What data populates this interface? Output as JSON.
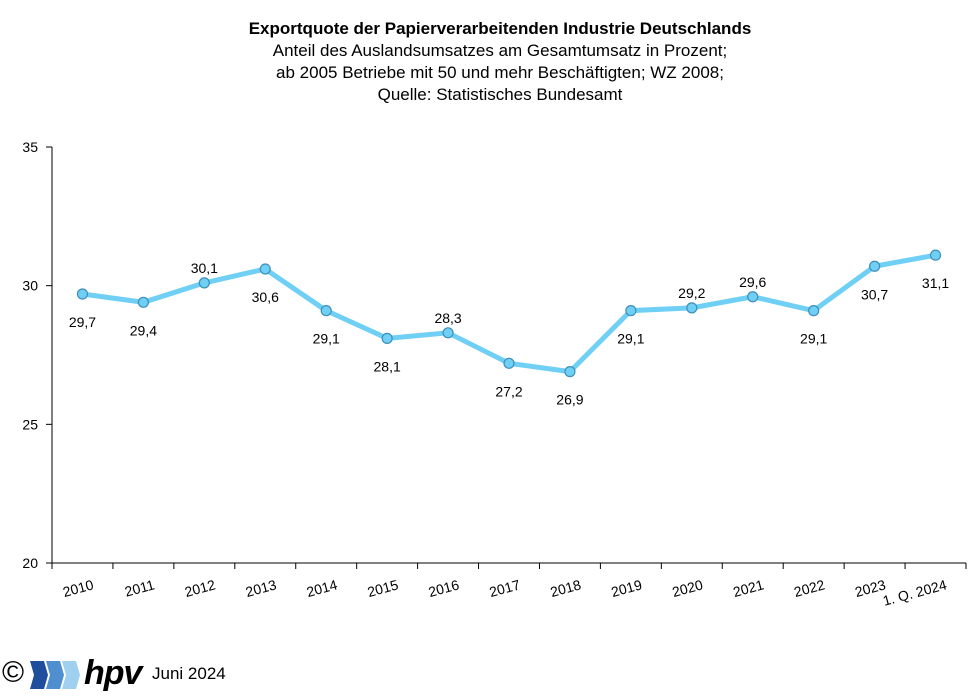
{
  "chart_data": {
    "type": "line",
    "title": "Exportquote der Papierverarbeitenden Industrie Deutschlands",
    "subtitle_lines": [
      "Anteil des Auslandsumsatzes  am Gesamtumsatz in Prozent;",
      "ab 2005 Betriebe mit 50 und mehr Beschäftigten; WZ 2008;",
      "Quelle:  Statistisches Bundesamt"
    ],
    "categories": [
      "2010",
      "2011",
      "2012",
      "2013",
      "2014",
      "2015",
      "2016",
      "2017",
      "2018",
      "2019",
      "2020",
      "2021",
      "2022",
      "2023",
      "1. Q. 2024"
    ],
    "values": [
      29.7,
      29.4,
      30.1,
      30.6,
      29.1,
      28.1,
      28.3,
      27.2,
      26.9,
      29.1,
      29.2,
      29.6,
      29.1,
      30.7,
      31.1
    ],
    "value_labels": [
      "29,7",
      "29,4",
      "30,1",
      "30,6",
      "29,1",
      "28,1",
      "28,3",
      "27,2",
      "26,9",
      "29,1",
      "29,2",
      "29,6",
      "29,1",
      "30,7",
      "31,1"
    ],
    "label_positions": [
      "below",
      "below",
      "above",
      "below",
      "below",
      "below",
      "above",
      "below",
      "below",
      "below",
      "above",
      "above",
      "below",
      "below",
      "below"
    ],
    "ylim": [
      20,
      35
    ],
    "yticks": [
      "20",
      "25",
      "30",
      "35"
    ],
    "grid": false,
    "colors": {
      "line": "#6fcff5",
      "marker_fill": "#6fcff5",
      "marker_edge": "#3f8fb8"
    }
  },
  "footer": {
    "copyright": "©",
    "logo_text": "hpv",
    "date": "Juni 2024"
  }
}
